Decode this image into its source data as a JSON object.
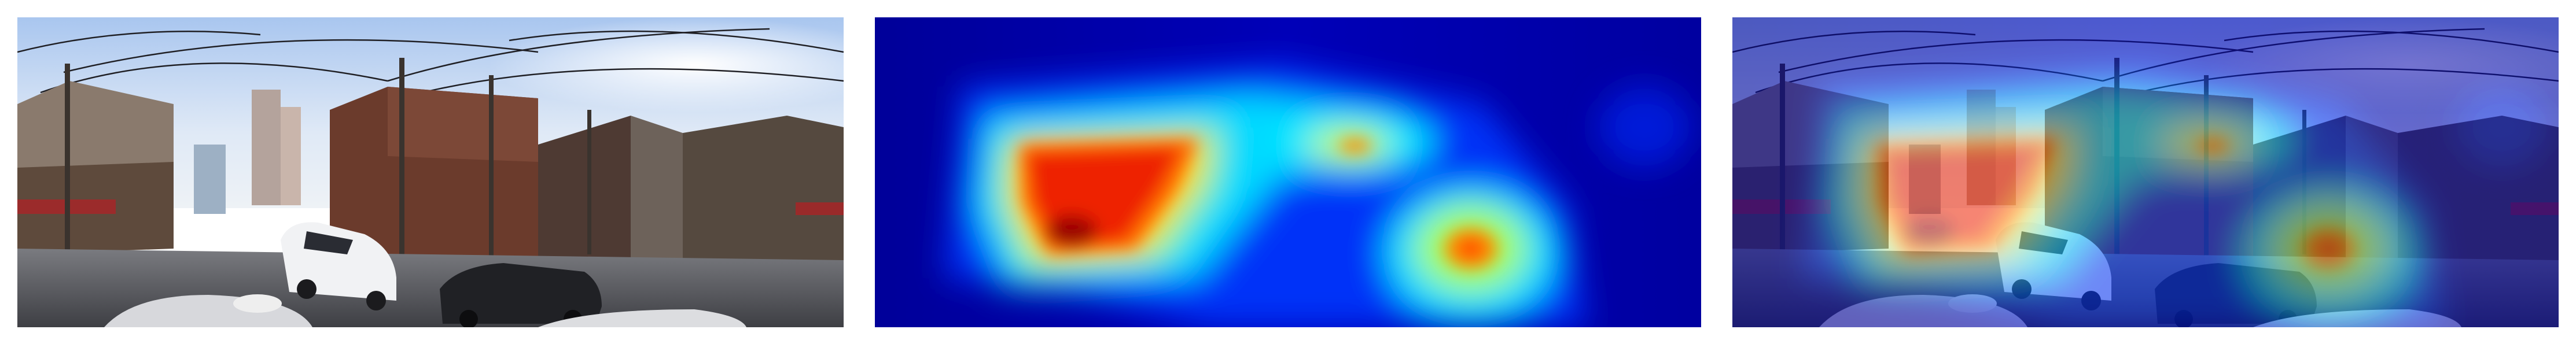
{
  "figure": {
    "panels": [
      {
        "role": "panorama-photo"
      },
      {
        "role": "attention-heatmap",
        "colormap": "jet"
      },
      {
        "role": "heatmap-overlay",
        "colormap": "jet"
      }
    ]
  },
  "colors": {
    "jet_low": "#00008b",
    "jet_mid": "#00ffff",
    "jet_high": "#8b0000",
    "sky": "#cfe0f5",
    "road": "#5d5e62",
    "building_brick": "#6b3b2c"
  }
}
